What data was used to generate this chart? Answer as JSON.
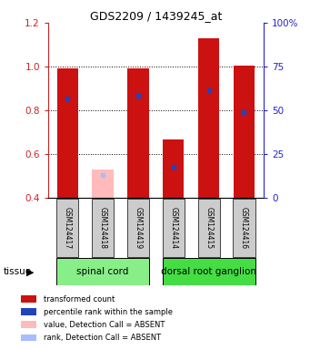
{
  "title": "GDS2209 / 1439245_at",
  "samples": [
    "GSM124417",
    "GSM124418",
    "GSM124419",
    "GSM124414",
    "GSM124415",
    "GSM124416"
  ],
  "red_values": [
    0.99,
    0.53,
    0.99,
    0.665,
    1.13,
    1.005
  ],
  "blue_values": [
    0.855,
    0.503,
    0.868,
    0.542,
    0.89,
    0.792
  ],
  "absent": [
    false,
    true,
    false,
    false,
    false,
    false
  ],
  "ylim": [
    0.4,
    1.2
  ],
  "yticks_left": [
    0.4,
    0.6,
    0.8,
    1.0,
    1.2
  ],
  "yticks_right": [
    0,
    25,
    50,
    75,
    100
  ],
  "tissue_groups": [
    {
      "label": "spinal cord",
      "indices": [
        0,
        1,
        2
      ],
      "color": "#88ee88"
    },
    {
      "label": "dorsal root ganglion",
      "indices": [
        3,
        4,
        5
      ],
      "color": "#44dd44"
    }
  ],
  "bar_width": 0.6,
  "red_color": "#cc1111",
  "pink_color": "#ffbbbb",
  "blue_color": "#2244bb",
  "lightblue_color": "#aabbff",
  "bg_color": "#ffffff",
  "left_axis_color": "#cc2222",
  "right_axis_color": "#2222cc",
  "label_area_color": "#cccccc",
  "tissue_label": "tissue",
  "legend_items": [
    {
      "label": "transformed count",
      "color": "#cc1111"
    },
    {
      "label": "percentile rank within the sample",
      "color": "#2244bb"
    },
    {
      "label": "value, Detection Call = ABSENT",
      "color": "#ffbbbb"
    },
    {
      "label": "rank, Detection Call = ABSENT",
      "color": "#aabbff"
    }
  ]
}
